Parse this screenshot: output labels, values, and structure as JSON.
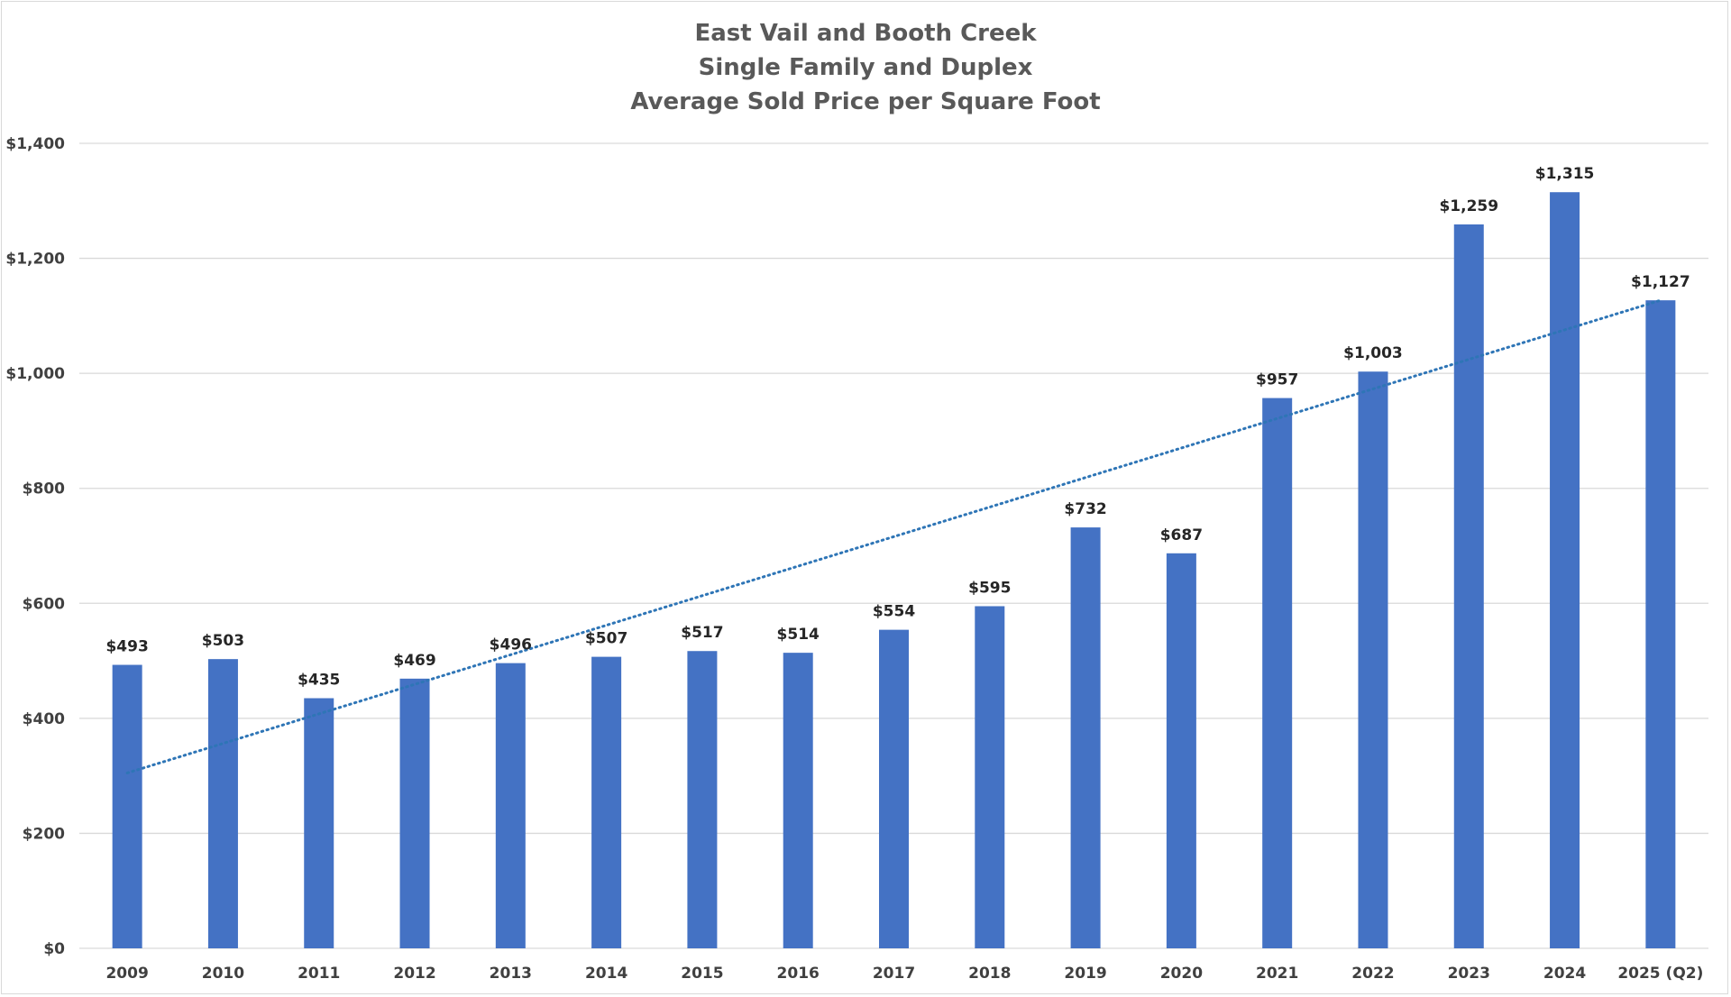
{
  "chart_data": {
    "type": "bar",
    "title": [
      "East Vail and Booth Creek",
      "Single Family and Duplex",
      "Average Sold Price per Square Foot"
    ],
    "categories": [
      "2009",
      "2010",
      "2011",
      "2012",
      "2013",
      "2014",
      "2015",
      "2016",
      "2017",
      "2018",
      "2019",
      "2020",
      "2021",
      "2022",
      "2023",
      "2024",
      "2025 (Q2)"
    ],
    "values": [
      493,
      503,
      435,
      469,
      496,
      507,
      517,
      514,
      554,
      595,
      732,
      687,
      957,
      1003,
      1259,
      1315,
      1127
    ],
    "data_labels": [
      "$493",
      "$503",
      "$435",
      "$469",
      "$496",
      "$507",
      "$517",
      "$514",
      "$554",
      "$595",
      "$732",
      "$687",
      "$957",
      "$1,003",
      "$1,259",
      "$1,315",
      "$1,127"
    ],
    "y_ticks": [
      0,
      200,
      400,
      600,
      800,
      1000,
      1200,
      1400
    ],
    "y_tick_labels": [
      "$0",
      "$200",
      "$400",
      "$600",
      "$800",
      "$1,000",
      "$1,200",
      "$1,400"
    ],
    "ylim": [
      0,
      1400
    ],
    "xlabel": "",
    "ylabel": "",
    "grid": "horizontal",
    "legend": "none",
    "trendline": {
      "type": "linear",
      "style": "dotted",
      "start": {
        "category": "2009",
        "value": 305
      },
      "end": {
        "category": "2025 (Q2)",
        "value": 1127
      }
    },
    "colors": {
      "bar": "#4472C4",
      "trendline": "#2E75B6",
      "grid": "#D9D9D9",
      "title": "#595959"
    }
  }
}
